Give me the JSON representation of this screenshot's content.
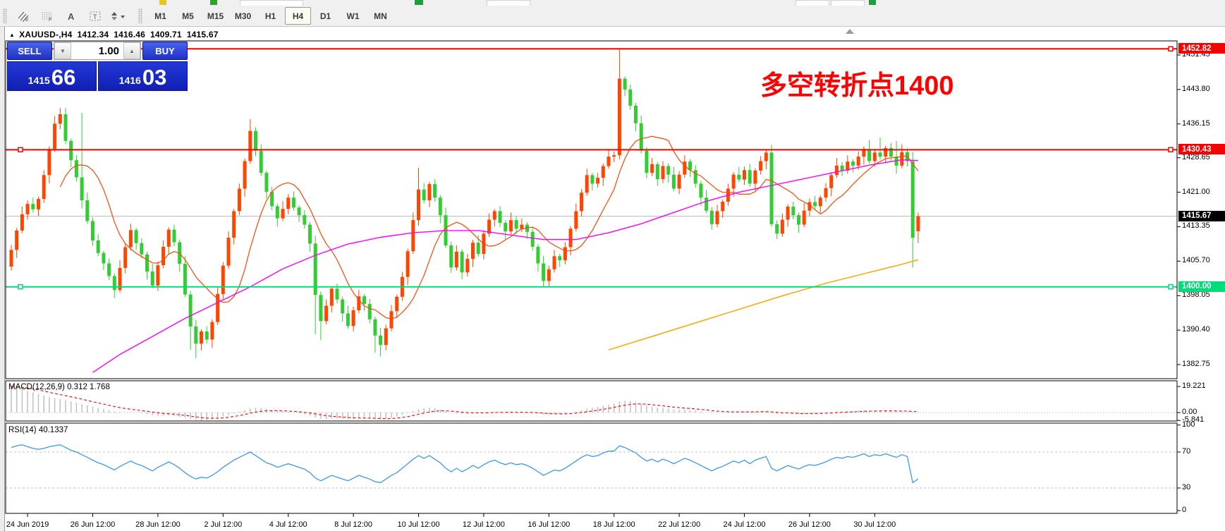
{
  "toolbar": {
    "tools": [
      {
        "name": "channels-tool",
        "glyph": "E"
      },
      {
        "name": "fibonacci-tool",
        "glyph": "F"
      },
      {
        "name": "text-tool",
        "glyph": "A"
      },
      {
        "name": "label-tool",
        "glyph": "T"
      },
      {
        "name": "arrows-tool",
        "glyph": "▾"
      }
    ],
    "timeframes": [
      "M1",
      "M5",
      "M15",
      "M30",
      "H1",
      "H4",
      "D1",
      "W1",
      "MN"
    ],
    "selected_timeframe": "H4"
  },
  "title": {
    "symbol": "XAUUSD-,H4",
    "open": "1412.34",
    "high": "1416.46",
    "low": "1409.71",
    "close": "1415.67"
  },
  "trade": {
    "sell_label": "SELL",
    "buy_label": "BUY",
    "volume": "1.00",
    "sell_price_main": "1415",
    "sell_price_big": "66",
    "buy_price_main": "1416",
    "buy_price_big": "03"
  },
  "annotation": {
    "text": "多空转折点1400",
    "color": "#ff0000"
  },
  "price_axis": {
    "ticks": [
      {
        "text": "1451.45",
        "value": 1451.45
      },
      {
        "text": "1443.80",
        "value": 1443.8
      },
      {
        "text": "1436.15",
        "value": 1436.15
      },
      {
        "text": "1428.65",
        "value": 1428.65
      },
      {
        "text": "1421.00",
        "value": 1421.0
      },
      {
        "text": "1413.35",
        "value": 1413.35
      },
      {
        "text": "1405.70",
        "value": 1405.7
      },
      {
        "text": "1398.05",
        "value": 1398.05
      },
      {
        "text": "1390.40",
        "value": 1390.4
      },
      {
        "text": "1382.75",
        "value": 1382.75
      }
    ],
    "levels": [
      {
        "text": "1452.82",
        "value": 1452.82,
        "bg": "#f60000",
        "kind": "resistance-line"
      },
      {
        "text": "1430.43",
        "value": 1430.43,
        "bg": "#f60000",
        "kind": "resistance-line"
      },
      {
        "text": "1415.67",
        "value": 1415.67,
        "bg": "#000000",
        "kind": "current-price"
      },
      {
        "text": "1400.00",
        "value": 1400.0,
        "bg": "#00dc78",
        "kind": "support-line"
      }
    ]
  },
  "macd_panel": {
    "label": "MACD(12,26,9) 0.312 1.768",
    "ticks": [
      {
        "text": "19.221",
        "value": 19.221
      },
      {
        "text": "0.00",
        "value": 0
      },
      {
        "text": "-5.841",
        "value": -5.841
      }
    ]
  },
  "rsi_panel": {
    "label": "RSI(14) 40.1337",
    "ticks": [
      {
        "text": "100",
        "value": 100
      },
      {
        "text": "70",
        "value": 70
      },
      {
        "text": "30",
        "value": 30
      },
      {
        "text": "0",
        "value": 0
      }
    ],
    "level_lines": [
      70,
      30
    ]
  },
  "time_axis": [
    {
      "text": "24 Jun 2019",
      "bar": 3
    },
    {
      "text": "26 Jun 12:00",
      "bar": 15
    },
    {
      "text": "28 Jun 12:00",
      "bar": 27
    },
    {
      "text": "2 Jul 12:00",
      "bar": 39
    },
    {
      "text": "4 Jul 12:00",
      "bar": 51
    },
    {
      "text": "8 Jul 12:00",
      "bar": 63
    },
    {
      "text": "10 Jul 12:00",
      "bar": 75
    },
    {
      "text": "12 Jul 12:00",
      "bar": 87
    },
    {
      "text": "16 Jul 12:00",
      "bar": 99
    },
    {
      "text": "18 Jul 12:00",
      "bar": 111
    },
    {
      "text": "22 Jul 12:00",
      "bar": 123
    },
    {
      "text": "24 Jul 12:00",
      "bar": 135
    },
    {
      "text": "26 Jul 12:00",
      "bar": 147
    },
    {
      "text": "30 Jul 12:00",
      "bar": 159
    }
  ],
  "chart_data": {
    "type": "candlestick",
    "symbol": "XAUUSD",
    "period": "H4",
    "colors": {
      "up": "#ff4500",
      "down": "#32cd32",
      "ma_fast": "#ff4500",
      "ma_mid": "#ff00ff",
      "ma_slow": "#ffa500",
      "macd_hist": "#c0c0c0",
      "macd_signal": "#ff0000",
      "rsi": "#3d9aec",
      "level_red": "#f60000",
      "level_green": "#00dc78",
      "bid_line": "#b8b8b8"
    },
    "ylim": [
      1382.75,
      1452.82
    ],
    "hlines": [
      {
        "value": 1452.82,
        "color": "#f60000"
      },
      {
        "value": 1430.43,
        "color": "#f60000"
      },
      {
        "value": 1400.0,
        "color": "#00dc78"
      }
    ],
    "bid_price": 1415.67,
    "first_open": 1404.5,
    "closes": [
      1408.2,
      1412.5,
      1416.1,
      1418.4,
      1417.2,
      1419.5,
      1424.8,
      1430.6,
      1436.2,
      1438.3,
      1432.4,
      1428.1,
      1424.3,
      1419.2,
      1414.6,
      1410.3,
      1407.5,
      1405.2,
      1402.4,
      1399.3,
      1404.2,
      1408.8,
      1412.6,
      1409.7,
      1407.2,
      1403.4,
      1400.3,
      1404.8,
      1408.9,
      1412.7,
      1409.9,
      1405.1,
      1398.3,
      1391.2,
      1387.4,
      1390.1,
      1388.3,
      1392.2,
      1398.4,
      1404.7,
      1410.9,
      1416.8,
      1421.8,
      1427.9,
      1434.6,
      1430.2,
      1425.3,
      1421.1,
      1417.9,
      1415.2,
      1417.3,
      1419.8,
      1417.6,
      1415.9,
      1413.8,
      1409.6,
      1398.2,
      1392.4,
      1395.8,
      1399.6,
      1397.2,
      1394.1,
      1391.3,
      1394.8,
      1397.9,
      1396.2,
      1392.8,
      1389.2,
      1387.1,
      1390.8,
      1394.6,
      1397.8,
      1402.2,
      1407.9,
      1414.8,
      1421.6,
      1419.2,
      1422.8,
      1419.8,
      1415.9,
      1409.2,
      1404.3,
      1407.8,
      1403.2,
      1406.2,
      1409.8,
      1407.3,
      1411.8,
      1414.9,
      1416.8,
      1414.2,
      1412.3,
      1414.8,
      1412.9,
      1413.8,
      1412.2,
      1408.9,
      1405.2,
      1401.3,
      1403.9,
      1406.8,
      1405.9,
      1408.8,
      1412.9,
      1416.8,
      1420.9,
      1424.8,
      1422.9,
      1424.2,
      1426.8,
      1428.9,
      1429.2,
      1446.2,
      1443.8,
      1440.2,
      1436.3,
      1430.2,
      1425.3,
      1427.2,
      1423.9,
      1426.8,
      1424.9,
      1421.8,
      1424.9,
      1427.8,
      1425.9,
      1422.9,
      1419.8,
      1416.9,
      1413.9,
      1416.8,
      1418.9,
      1421.8,
      1424.9,
      1423.8,
      1425.9,
      1422.9,
      1425.8,
      1427.9,
      1429.8,
      1413.9,
      1411.8,
      1414.9,
      1417.8,
      1415.9,
      1413.8,
      1416.9,
      1418.8,
      1417.9,
      1419.8,
      1421.9,
      1424.8,
      1426.9,
      1425.8,
      1427.8,
      1426.9,
      1428.9,
      1430.6,
      1427.9,
      1429.8,
      1428.9,
      1430.8,
      1428.9,
      1426.9,
      1429.9,
      1427.9,
      1410.9,
      1415.67
    ],
    "overrides": {
      "9": [
        null,
        1439.7,
        null,
        null
      ],
      "13": [
        null,
        1438.6,
        null,
        null
      ],
      "33": [
        null,
        null,
        1386.0,
        null
      ],
      "34": [
        null,
        null,
        1384.2,
        null
      ],
      "44": [
        null,
        1437.2,
        null,
        null
      ],
      "56": [
        null,
        null,
        1389.5,
        null
      ],
      "57": [
        null,
        null,
        1388.2,
        null
      ],
      "67": [
        null,
        null,
        1385.4,
        null
      ],
      "68": [
        null,
        null,
        1384.6,
        null
      ],
      "75": [
        null,
        1426.4,
        null,
        null
      ],
      "98": [
        null,
        null,
        1400.1,
        null
      ],
      "112": [
        1429.2,
        1452.8,
        1428.3,
        1446.2
      ],
      "158": [
        null,
        1432.6,
        null,
        null
      ],
      "160": [
        null,
        1433.1,
        null,
        null
      ],
      "163": [
        null,
        1432.4,
        null,
        null
      ],
      "166": [
        1427.9,
        1429.9,
        1404.3,
        1410.9
      ],
      "167": [
        1412.34,
        1416.46,
        1409.71,
        1415.67
      ]
    },
    "ma_fast_period": 10,
    "ma_mid_points": [
      [
        15,
        1381
      ],
      [
        20,
        1385
      ],
      [
        26,
        1389
      ],
      [
        32,
        1393
      ],
      [
        38,
        1396.5
      ],
      [
        44,
        1400
      ],
      [
        50,
        1404
      ],
      [
        56,
        1407
      ],
      [
        62,
        1409.5
      ],
      [
        68,
        1411
      ],
      [
        74,
        1412
      ],
      [
        80,
        1412.5
      ],
      [
        86,
        1412.5
      ],
      [
        92,
        1411.5
      ],
      [
        98,
        1410.5
      ],
      [
        104,
        1410.5
      ],
      [
        110,
        1412
      ],
      [
        116,
        1414
      ],
      [
        122,
        1416.5
      ],
      [
        128,
        1419
      ],
      [
        134,
        1421
      ],
      [
        140,
        1422.5
      ],
      [
        146,
        1424
      ],
      [
        152,
        1425.5
      ],
      [
        158,
        1427
      ],
      [
        164,
        1428.2
      ],
      [
        167,
        1428
      ]
    ],
    "ma_slow_points": [
      [
        110,
        1386
      ],
      [
        118,
        1389
      ],
      [
        126,
        1392
      ],
      [
        134,
        1395
      ],
      [
        142,
        1398
      ],
      [
        150,
        1400.8
      ],
      [
        158,
        1403.2
      ],
      [
        164,
        1405
      ],
      [
        167,
        1406
      ]
    ],
    "macd_hist": [
      19.2,
      18.3,
      17.2,
      16.0,
      14.8,
      13.6,
      12.5,
      11.4,
      10.6,
      10.0,
      9.2,
      8.3,
      7.3,
      6.2,
      5.2,
      4.3,
      3.4,
      2.6,
      1.8,
      1.0,
      0.5,
      0.3,
      0.2,
      -0.2,
      -0.6,
      -1.2,
      -1.8,
      -2.2,
      -2.4,
      -2.2,
      -2.6,
      -3.2,
      -4.0,
      -4.8,
      -5.4,
      -5.8,
      -5.5,
      -4.9,
      -4.0,
      -3.0,
      -1.8,
      -0.6,
      0.6,
      1.8,
      3.0,
      3.6,
      3.4,
      2.8,
      2.0,
      1.2,
      0.6,
      0.4,
      0.0,
      -0.6,
      -1.4,
      -2.4,
      -3.6,
      -4.6,
      -4.8,
      -4.4,
      -4.4,
      -4.6,
      -5.0,
      -4.8,
      -4.4,
      -4.2,
      -4.4,
      -4.8,
      -5.2,
      -4.8,
      -4.0,
      -3.0,
      -1.8,
      -0.4,
      1.0,
      2.4,
      3.2,
      3.6,
      3.2,
      2.4,
      1.2,
      0.0,
      -0.6,
      -1.2,
      -1.2,
      -0.8,
      -0.6,
      -0.2,
      0.2,
      0.6,
      0.6,
      0.4,
      0.4,
      0.2,
      0.2,
      0.0,
      -0.4,
      -1.0,
      -1.6,
      -1.8,
      -1.6,
      -1.4,
      -0.8,
      0.0,
      0.8,
      1.8,
      2.8,
      3.4,
      4.2,
      5.0,
      5.8,
      6.6,
      8.0,
      8.6,
      8.4,
      7.6,
      6.4,
      5.2,
      4.4,
      3.6,
      3.2,
      2.8,
      2.2,
      2.0,
      2.0,
      1.8,
      1.4,
      0.8,
      0.2,
      -0.4,
      -0.6,
      -0.4,
      -0.2,
      0.2,
      0.4,
      0.6,
      0.4,
      0.6,
      0.8,
      1.0,
      -0.2,
      -1.0,
      -1.2,
      -1.0,
      -1.2,
      -1.4,
      -1.2,
      -0.8,
      -0.6,
      -0.4,
      0.0,
      0.4,
      0.8,
      1.0,
      1.2,
      1.2,
      1.4,
      1.6,
      1.4,
      1.6,
      1.4,
      1.6,
      1.2,
      0.8,
      1.0,
      0.6,
      -0.4,
      0.312
    ],
    "rsi": [
      75,
      77,
      78,
      76,
      74,
      73,
      74,
      76,
      77,
      78,
      75,
      72,
      70,
      67,
      64,
      61,
      58,
      56,
      53,
      50,
      54,
      57,
      60,
      57,
      55,
      52,
      49,
      53,
      56,
      59,
      56,
      52,
      47,
      43,
      40,
      42,
      41,
      44,
      48,
      53,
      57,
      61,
      64,
      67,
      70,
      66,
      62,
      58,
      56,
      53,
      55,
      57,
      55,
      53,
      51,
      47,
      41,
      38,
      41,
      44,
      42,
      40,
      38,
      41,
      44,
      42,
      40,
      37,
      36,
      40,
      44,
      47,
      52,
      57,
      62,
      66,
      63,
      66,
      62,
      58,
      52,
      48,
      52,
      48,
      51,
      55,
      52,
      56,
      59,
      61,
      58,
      56,
      58,
      56,
      57,
      55,
      52,
      48,
      44,
      47,
      50,
      49,
      52,
      56,
      60,
      64,
      67,
      65,
      66,
      69,
      71,
      71,
      77,
      75,
      72,
      69,
      64,
      60,
      62,
      59,
      62,
      60,
      57,
      60,
      63,
      61,
      58,
      55,
      52,
      49,
      52,
      54,
      57,
      60,
      58,
      61,
      57,
      61,
      63,
      65,
      52,
      49,
      52,
      55,
      53,
      51,
      54,
      56,
      55,
      57,
      59,
      62,
      64,
      63,
      65,
      64,
      66,
      68,
      65,
      67,
      66,
      68,
      66,
      64,
      67,
      65,
      36,
      40.1
    ]
  }
}
